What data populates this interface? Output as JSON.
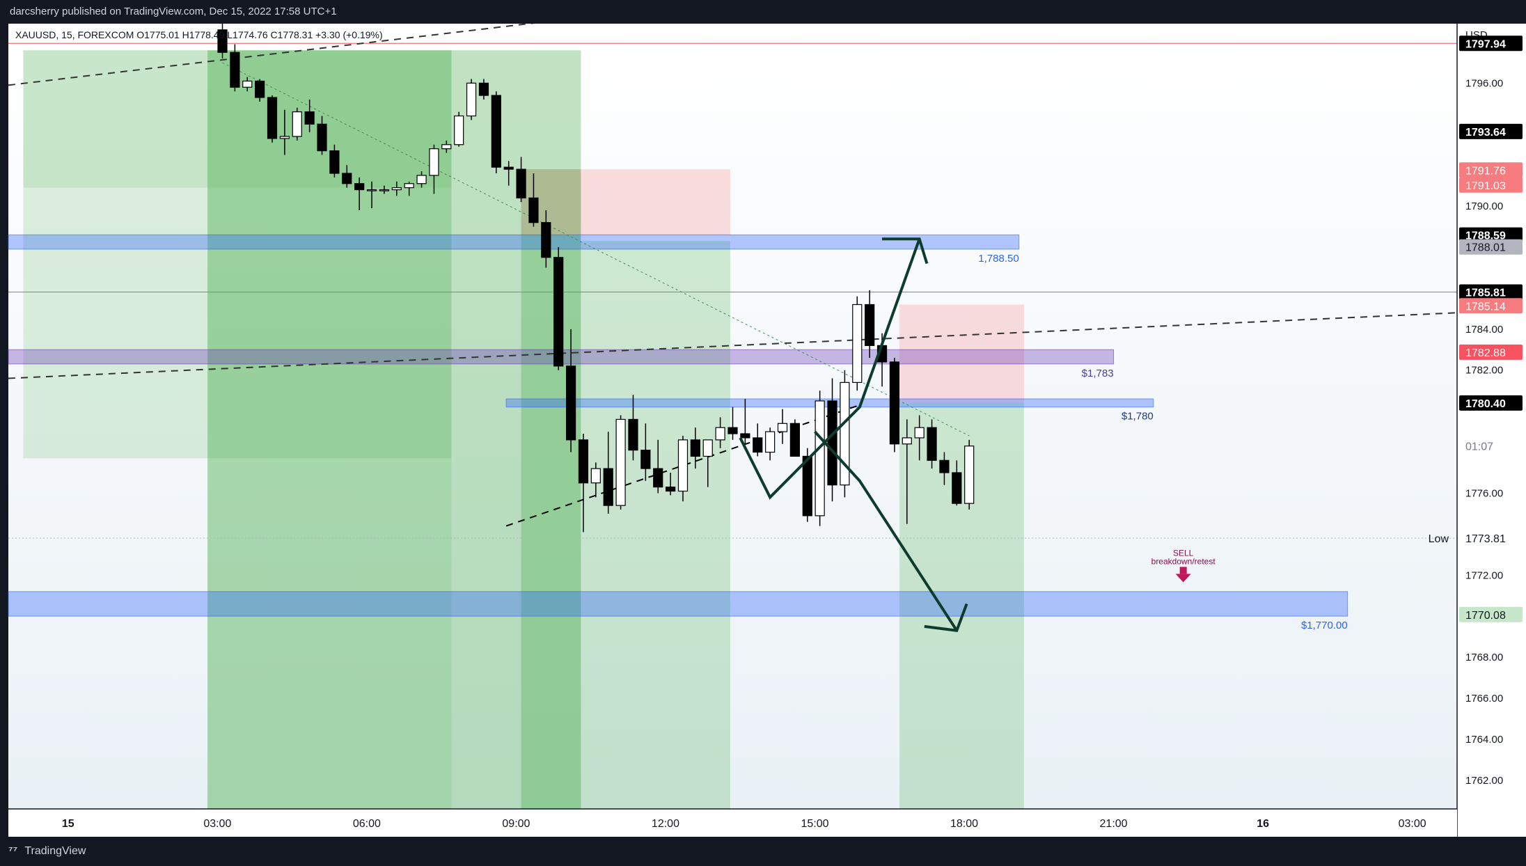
{
  "header": {
    "published_text": "darcsherry published on TradingView.com, Dec 15, 2022 17:58 UTC+1"
  },
  "footer": {
    "logo_text": "TradingView"
  },
  "chart_data": {
    "type": "candlestick",
    "symbol_line": "XAUUSD, 15, FOREXCOM  O1775.01  H1778.49  L1774.76  C1778.31  +3.30 (+0.19%)",
    "currency_label": "USD",
    "ylim": [
      1760.6,
      1798.9
    ],
    "xlim": [
      -0.3,
      28.8
    ],
    "price_ticks": [
      "1762.00",
      "1764.00",
      "1766.00",
      "1768.00",
      "1772.00",
      "1776.00",
      "1782.00",
      "1784.00",
      "1790.00",
      "1796.00"
    ],
    "price_tick_values": [
      1762,
      1764,
      1766,
      1768,
      1772,
      1776,
      1782,
      1784,
      1790,
      1796
    ],
    "time_ticks": [
      {
        "label": "15",
        "t": 0.9,
        "bold": true
      },
      {
        "label": "03:00",
        "t": 3.9
      },
      {
        "label": "06:00",
        "t": 6.9
      },
      {
        "label": "09:00",
        "t": 9.9
      },
      {
        "label": "12:00",
        "t": 12.9
      },
      {
        "label": "15:00",
        "t": 15.9
      },
      {
        "label": "18:00",
        "t": 18.9
      },
      {
        "label": "21:00",
        "t": 21.9
      },
      {
        "label": "16",
        "t": 24.9,
        "bold": true
      },
      {
        "label": "03:00",
        "t": 27.9
      }
    ],
    "price_labels": [
      {
        "text": "1797.94",
        "value": 1797.94,
        "bg": "#000000",
        "fg": "#ffffff"
      },
      {
        "text": "1793.64",
        "value": 1793.64,
        "bg": "#000000",
        "fg": "#ffffff"
      },
      {
        "text": "1791.76",
        "value": 1791.76,
        "bg": "#f77c80",
        "fg": "#ffffff"
      },
      {
        "text": "1791.03",
        "value": 1791.03,
        "bg": "#f77c80",
        "fg": "#ffffff"
      },
      {
        "text": "1788.59",
        "value": 1788.59,
        "bg": "#000000",
        "fg": "#ffffff"
      },
      {
        "text": "1788.01",
        "value": 1788.01,
        "bg": "#b2b5be",
        "fg": "#131722"
      },
      {
        "text": "1785.81",
        "value": 1785.81,
        "bg": "#000000",
        "fg": "#ffffff"
      },
      {
        "text": "1785.14",
        "value": 1785.14,
        "bg": "#f77c80",
        "fg": "#ffffff"
      },
      {
        "text": "1782.88",
        "value": 1782.88,
        "bg": "#f7525f",
        "fg": "#ffffff"
      },
      {
        "text": "1780.40",
        "value": 1780.4,
        "bg": "#000000",
        "fg": "#ffffff"
      },
      {
        "text": "01:07",
        "value": 1778.31,
        "bg": "#ffffff",
        "fg": "#787b86"
      },
      {
        "text": "1773.81",
        "value": 1773.81,
        "bg": "#ffffff",
        "fg": "#131722"
      },
      {
        "text": "1770.08",
        "value": 1770.08,
        "bg": "#c8e6c9",
        "fg": "#131722"
      }
    ],
    "low_label": "Low",
    "low_value": 1773.81,
    "zones": [
      {
        "name": "zone-1788",
        "from": 1787.9,
        "to": 1788.6,
        "t0": -0.3,
        "t1": 20.0,
        "color": "#2962ff",
        "opacity": 0.35,
        "label": "1,788.50",
        "label_t": 20.0
      },
      {
        "name": "zone-1783",
        "from": 1782.3,
        "to": 1783.0,
        "t0": -0.3,
        "t1": 21.9,
        "color": "#673ab7",
        "opacity": 0.35,
        "label": "$1,783",
        "label_t": 21.9
      },
      {
        "name": "zone-1780",
        "from": 1780.2,
        "to": 1780.6,
        "t0": 9.7,
        "t1": 22.7,
        "color": "#2962ff",
        "opacity": 0.35,
        "label": "$1,780",
        "label_t": 22.7
      },
      {
        "name": "zone-1770",
        "from": 1770.0,
        "to": 1771.2,
        "t0": -0.3,
        "t1": 26.6,
        "color": "#2962ff",
        "opacity": 0.35,
        "label": "$1,770.00",
        "label_t": 26.6
      }
    ],
    "hlines": [
      {
        "value": 1797.94,
        "color": "#f7525f",
        "width": 1
      },
      {
        "value": 1785.81,
        "color": "#f7525f",
        "width": 1
      },
      {
        "value": 1773.81,
        "color": "#b2b5be",
        "width": 1,
        "dash": "2,3"
      }
    ],
    "annotation": {
      "line1": "SELL",
      "line2": "breakdown/retest",
      "t": 23.3,
      "value": 1772.2
    },
    "candles": [
      [
        4.0,
        1798.6,
        1799.0,
        1797.2,
        1797.5
      ],
      [
        4.25,
        1797.5,
        1797.9,
        1795.6,
        1795.8
      ],
      [
        4.5,
        1795.8,
        1796.3,
        1795.6,
        1796.1
      ],
      [
        4.75,
        1796.1,
        1796.2,
        1795.1,
        1795.3
      ],
      [
        5.0,
        1795.3,
        1795.4,
        1793.1,
        1793.3
      ],
      [
        5.25,
        1793.3,
        1794.7,
        1792.5,
        1793.4
      ],
      [
        5.5,
        1793.4,
        1794.8,
        1793.2,
        1794.6
      ],
      [
        5.75,
        1794.6,
        1795.2,
        1793.6,
        1794.0
      ],
      [
        6.0,
        1794.0,
        1794.4,
        1792.5,
        1792.7
      ],
      [
        6.25,
        1792.7,
        1793.0,
        1791.4,
        1791.6
      ],
      [
        6.5,
        1791.6,
        1792.0,
        1790.9,
        1791.1
      ],
      [
        6.75,
        1791.1,
        1791.4,
        1789.8,
        1790.8
      ],
      [
        7.0,
        1790.8,
        1791.2,
        1789.9,
        1790.8
      ],
      [
        7.25,
        1790.8,
        1791.0,
        1790.6,
        1790.8
      ],
      [
        7.5,
        1790.8,
        1791.2,
        1790.5,
        1790.9
      ],
      [
        7.75,
        1790.9,
        1791.2,
        1790.5,
        1791.1
      ],
      [
        8.0,
        1791.1,
        1791.7,
        1790.9,
        1791.5
      ],
      [
        8.25,
        1791.5,
        1793.0,
        1790.6,
        1792.8
      ],
      [
        8.5,
        1792.8,
        1793.2,
        1792.6,
        1793.0
      ],
      [
        8.75,
        1793.0,
        1794.6,
        1792.9,
        1794.4
      ],
      [
        9.0,
        1794.4,
        1796.2,
        1794.2,
        1796.0
      ],
      [
        9.25,
        1796.0,
        1796.2,
        1795.2,
        1795.4
      ],
      [
        9.5,
        1795.4,
        1795.6,
        1791.6,
        1791.9
      ],
      [
        9.75,
        1791.9,
        1792.2,
        1791.0,
        1791.8
      ],
      [
        10.0,
        1791.8,
        1792.4,
        1790.2,
        1790.4
      ],
      [
        10.25,
        1790.4,
        1791.6,
        1789.0,
        1789.2
      ],
      [
        10.5,
        1789.2,
        1789.8,
        1787.0,
        1787.5
      ],
      [
        10.75,
        1787.5,
        1788.0,
        1782.0,
        1782.2
      ],
      [
        11.0,
        1782.2,
        1784.0,
        1778.0,
        1778.6
      ],
      [
        11.25,
        1778.6,
        1778.9,
        1774.1,
        1776.5
      ],
      [
        11.5,
        1776.5,
        1777.5,
        1775.8,
        1777.2
      ],
      [
        11.75,
        1777.2,
        1779.0,
        1775.0,
        1775.4
      ],
      [
        12.0,
        1775.4,
        1779.8,
        1775.2,
        1779.6
      ],
      [
        12.25,
        1779.6,
        1780.8,
        1777.6,
        1778.1
      ],
      [
        12.5,
        1778.1,
        1779.4,
        1776.6,
        1777.2
      ],
      [
        12.75,
        1777.2,
        1778.6,
        1776.0,
        1776.3
      ],
      [
        13.0,
        1776.3,
        1777.0,
        1775.9,
        1776.1
      ],
      [
        13.25,
        1776.1,
        1778.8,
        1775.6,
        1778.6
      ],
      [
        13.5,
        1778.6,
        1779.2,
        1777.2,
        1777.8
      ],
      [
        13.75,
        1777.8,
        1778.6,
        1776.3,
        1778.6
      ],
      [
        14.0,
        1778.6,
        1779.7,
        1778.2,
        1779.2
      ],
      [
        14.25,
        1779.2,
        1780.2,
        1778.6,
        1778.9
      ],
      [
        14.5,
        1778.9,
        1780.6,
        1778.4,
        1778.7
      ],
      [
        14.75,
        1778.7,
        1779.4,
        1777.8,
        1778.0
      ],
      [
        15.0,
        1778.0,
        1779.2,
        1777.6,
        1779.0
      ],
      [
        15.25,
        1779.0,
        1780.1,
        1778.4,
        1779.4
      ],
      [
        15.5,
        1779.4,
        1779.6,
        1777.8,
        1777.8
      ],
      [
        15.75,
        1777.8,
        1778.2,
        1774.6,
        1774.9
      ],
      [
        16.0,
        1774.9,
        1781.0,
        1774.4,
        1780.5
      ],
      [
        16.25,
        1780.5,
        1781.6,
        1775.6,
        1776.4
      ],
      [
        16.5,
        1776.4,
        1782.0,
        1775.8,
        1781.4
      ],
      [
        16.75,
        1781.4,
        1785.6,
        1781.0,
        1785.2
      ],
      [
        17.0,
        1785.2,
        1785.9,
        1782.6,
        1783.2
      ],
      [
        17.25,
        1783.2,
        1783.8,
        1781.2,
        1782.4
      ],
      [
        17.5,
        1782.4,
        1782.6,
        1778.0,
        1778.4
      ],
      [
        17.75,
        1778.4,
        1779.6,
        1774.5,
        1778.7
      ],
      [
        18.0,
        1778.7,
        1779.8,
        1777.6,
        1779.2
      ],
      [
        18.25,
        1779.2,
        1779.6,
        1777.2,
        1777.6
      ],
      [
        18.5,
        1777.6,
        1778.0,
        1776.4,
        1777.0
      ],
      [
        18.75,
        1777.0,
        1777.6,
        1775.4,
        1775.5
      ],
      [
        19.0,
        1775.5,
        1778.6,
        1775.2,
        1778.3
      ]
    ]
  }
}
